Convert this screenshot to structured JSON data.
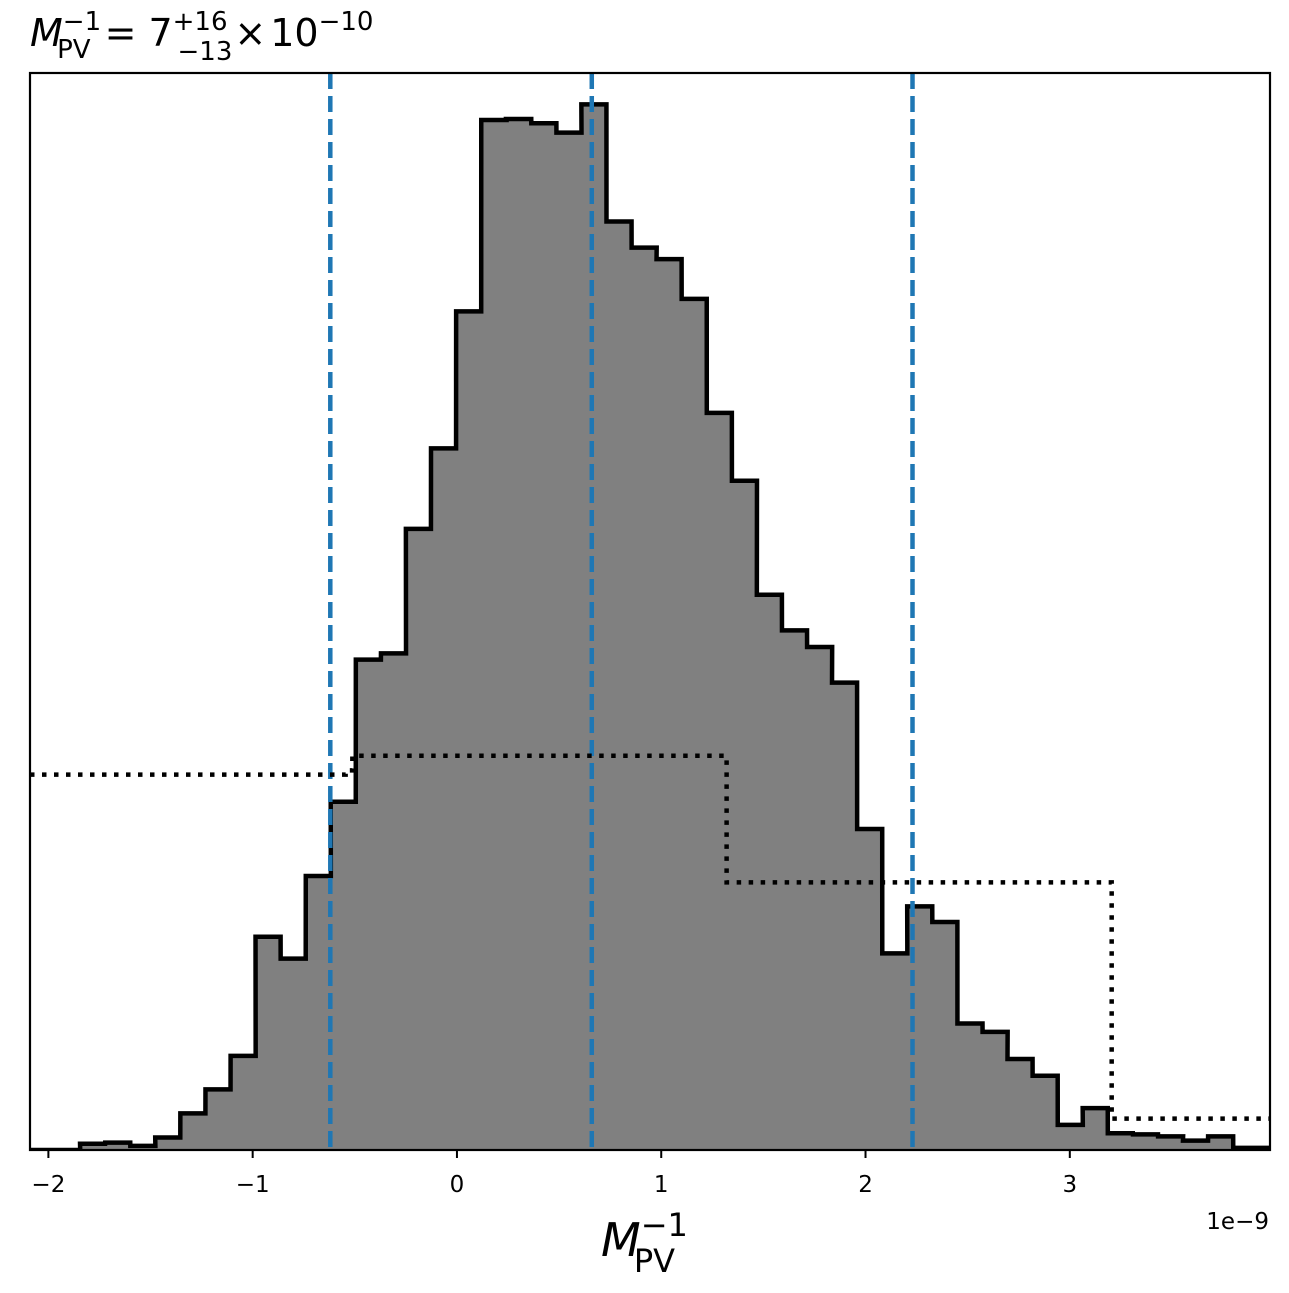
{
  "chart_data": {
    "type": "histogram",
    "title": {
      "symbol": "M",
      "subscript": "PV",
      "superscript": "−1",
      "equals": "=",
      "value": "7",
      "upper_err": "+16",
      "lower_err": "−13",
      "times": "×",
      "base": "10",
      "exponent": "−10"
    },
    "xlabel": {
      "symbol": "M",
      "subscript": "PV",
      "superscript": "−1"
    },
    "x_offset_label": "1e−9",
    "xlim": [
      -2.09,
      3.98
    ],
    "ylim": [
      0,
      1.03
    ],
    "x_ticks": [
      {
        "value": -2,
        "label": "−2"
      },
      {
        "value": -1,
        "label": "−1"
      },
      {
        "value": 0,
        "label": "0"
      },
      {
        "value": 1,
        "label": "1"
      },
      {
        "value": 2,
        "label": "2"
      },
      {
        "value": 3,
        "label": "3"
      }
    ],
    "y_ticks": [],
    "bin_width": 0.1227,
    "bins": [
      {
        "x": -2.09,
        "y": 0.0
      },
      {
        "x": -1.967,
        "y": 0.0
      },
      {
        "x": -1.845,
        "y": 0.006
      },
      {
        "x": -1.722,
        "y": 0.007
      },
      {
        "x": -1.599,
        "y": 0.004
      },
      {
        "x": -1.477,
        "y": 0.012
      },
      {
        "x": -1.354,
        "y": 0.035
      },
      {
        "x": -1.231,
        "y": 0.058
      },
      {
        "x": -1.108,
        "y": 0.09
      },
      {
        "x": -0.986,
        "y": 0.204
      },
      {
        "x": -0.863,
        "y": 0.183
      },
      {
        "x": -0.74,
        "y": 0.262
      },
      {
        "x": -0.618,
        "y": 0.333
      },
      {
        "x": -0.495,
        "y": 0.469
      },
      {
        "x": -0.372,
        "y": 0.475
      },
      {
        "x": -0.25,
        "y": 0.594
      },
      {
        "x": -0.127,
        "y": 0.671
      },
      {
        "x": -0.004,
        "y": 0.802
      },
      {
        "x": 0.119,
        "y": 0.985
      },
      {
        "x": 0.241,
        "y": 0.986
      },
      {
        "x": 0.364,
        "y": 0.982
      },
      {
        "x": 0.487,
        "y": 0.973
      },
      {
        "x": 0.609,
        "y": 1.0
      },
      {
        "x": 0.732,
        "y": 0.888
      },
      {
        "x": 0.855,
        "y": 0.863
      },
      {
        "x": 0.977,
        "y": 0.852
      },
      {
        "x": 1.1,
        "y": 0.814
      },
      {
        "x": 1.223,
        "y": 0.705
      },
      {
        "x": 1.346,
        "y": 0.64
      },
      {
        "x": 1.468,
        "y": 0.531
      },
      {
        "x": 1.591,
        "y": 0.497
      },
      {
        "x": 1.714,
        "y": 0.481
      },
      {
        "x": 1.836,
        "y": 0.447
      },
      {
        "x": 1.959,
        "y": 0.307
      },
      {
        "x": 2.082,
        "y": 0.188
      },
      {
        "x": 2.204,
        "y": 0.233
      },
      {
        "x": 2.327,
        "y": 0.218
      },
      {
        "x": 2.45,
        "y": 0.121
      },
      {
        "x": 2.573,
        "y": 0.113
      },
      {
        "x": 2.695,
        "y": 0.087
      },
      {
        "x": 2.818,
        "y": 0.071
      },
      {
        "x": 2.941,
        "y": 0.024
      },
      {
        "x": 3.063,
        "y": 0.04
      },
      {
        "x": 3.186,
        "y": 0.016
      },
      {
        "x": 3.309,
        "y": 0.015
      },
      {
        "x": 3.432,
        "y": 0.013
      },
      {
        "x": 3.554,
        "y": 0.009
      },
      {
        "x": 3.677,
        "y": 0.013
      },
      {
        "x": 3.8,
        "y": 0.002
      },
      {
        "x": 3.922,
        "y": 0.002
      }
    ],
    "prior_steps": [
      {
        "x0": -2.09,
        "x1": -0.545,
        "y": 0.359
      },
      {
        "x0": -0.545,
        "x1": -0.512,
        "y": 0.363
      },
      {
        "x0": -0.512,
        "x1": 1.32,
        "y": 0.377
      },
      {
        "x0": 1.32,
        "x1": 3.205,
        "y": 0.256
      },
      {
        "x0": 3.205,
        "x1": 3.98,
        "y": 0.03
      }
    ],
    "quantile_lines": [
      -0.62,
      0.66,
      2.23
    ],
    "colors": {
      "hist_fill": "#808080",
      "hist_edge": "#000000",
      "quantile_line": "#1f77b4",
      "prior_line": "#000000"
    },
    "grid": false,
    "legend": "none"
  }
}
